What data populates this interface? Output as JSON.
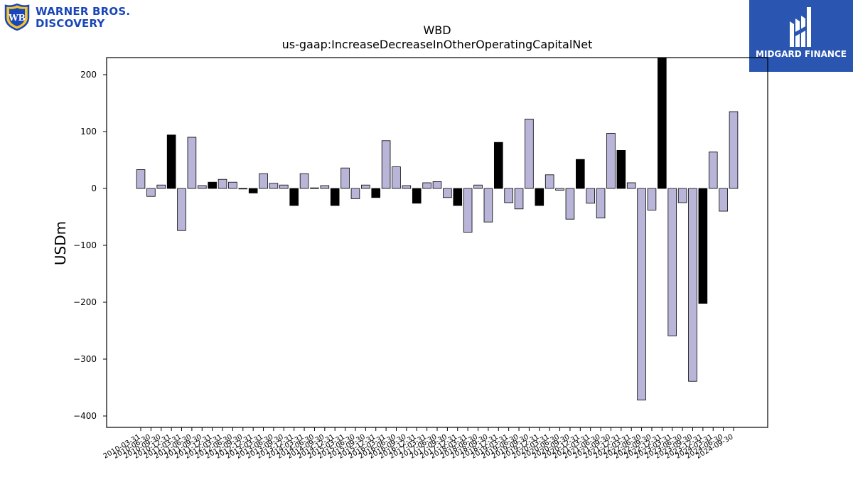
{
  "logos": {
    "left": {
      "text_line1": "WARNER BROS.",
      "text_line2": "DISCOVERY",
      "icon": "wb-shield-icon",
      "color": "#1946b8"
    },
    "right": {
      "text": "MIDGARD FINANCE",
      "icon": "midgard-m-icon",
      "background": "#2a55b0"
    }
  },
  "chart_data": {
    "type": "bar",
    "title": "WBD",
    "subtitle": "us-gaap:IncreaseDecreaseInOtherOperatingCapitalNet",
    "xlabel": "",
    "ylabel": "USDm",
    "ylim": [
      -420,
      230
    ],
    "yticks": [
      200,
      100,
      0,
      -100,
      -200,
      -300,
      -400
    ],
    "ytick_labels": [
      "200",
      "100",
      "0",
      "−100",
      "−200",
      "−300",
      "−400"
    ],
    "grid": false,
    "colors": {
      "quarterly": "#b8b5d8",
      "year_end": "#000000",
      "edge": "#000000"
    },
    "categories": [
      "2010-03-31",
      "2010-06-30",
      "2010-09-30",
      "2010-12-31",
      "2011-03-31",
      "2011-06-30",
      "2011-09-30",
      "2011-12-31",
      "2012-03-31",
      "2012-06-30",
      "2012-09-30",
      "2012-12-31",
      "2013-03-31",
      "2013-06-30",
      "2013-09-30",
      "2013-12-31",
      "2014-03-31",
      "2014-06-30",
      "2014-09-30",
      "2014-12-31",
      "2015-03-31",
      "2015-06-30",
      "2015-09-30",
      "2015-12-31",
      "2016-03-31",
      "2016-06-30",
      "2016-09-30",
      "2016-12-31",
      "2017-03-31",
      "2017-06-30",
      "2017-09-30",
      "2017-12-31",
      "2018-03-31",
      "2018-06-30",
      "2018-09-30",
      "2018-12-31",
      "2019-03-31",
      "2019-06-30",
      "2019-09-30",
      "2019-12-31",
      "2020-03-31",
      "2020-06-30",
      "2020-09-30",
      "2020-12-31",
      "2021-03-31",
      "2021-06-30",
      "2021-09-30",
      "2021-12-31",
      "2022-03-31",
      "2022-06-30",
      "2022-09-30",
      "2022-12-31",
      "2023-03-31",
      "2023-06-30",
      "2023-09-30",
      "2023-12-31",
      "2024-03-31",
      "2024-06-30",
      "2024-09-30"
    ],
    "values": [
      33,
      -14,
      6,
      94,
      -74,
      90,
      5,
      11,
      16,
      11,
      0,
      -8,
      26,
      9,
      6,
      -30,
      26,
      1,
      5,
      -30,
      36,
      -18,
      6,
      -16,
      84,
      38,
      5,
      -26,
      10,
      12,
      -16,
      -30,
      -77,
      6,
      -59,
      81,
      -25,
      -36,
      122,
      -30,
      24,
      -3,
      -54,
      51,
      -26,
      -52,
      97,
      67,
      10,
      -372,
      -38,
      230,
      -259,
      -25,
      -339,
      -202,
      64,
      -40,
      135
    ]
  }
}
